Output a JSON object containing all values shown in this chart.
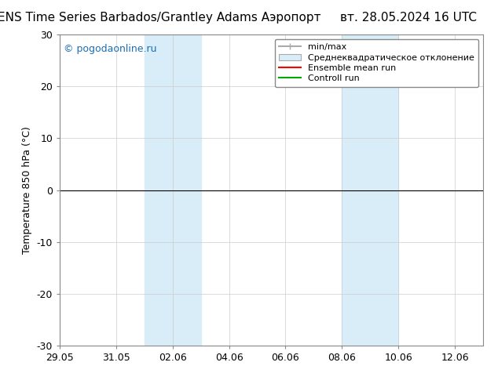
{
  "title_left": "ENS Time Series Barbados/Grantley Adams Аэропорт",
  "title_right": "вт. 28.05.2024 16 UTC",
  "ylabel": "Temperature 850 hPa (°C)",
  "watermark": "© pogodaonline.ru",
  "ylim": [
    -30,
    30
  ],
  "yticks": [
    -30,
    -20,
    -10,
    0,
    10,
    20,
    30
  ],
  "xstart": "2024-05-29",
  "xend": "2024-06-13",
  "xtick_labels": [
    "29.05",
    "31.05",
    "02.06",
    "04.06",
    "06.06",
    "08.06",
    "10.06",
    "12.06"
  ],
  "xtick_dates": [
    "2024-05-29",
    "2024-05-31",
    "2024-06-02",
    "2024-06-04",
    "2024-06-06",
    "2024-06-08",
    "2024-06-10",
    "2024-06-12"
  ],
  "shade_regions": [
    {
      "start": "2024-06-01",
      "end": "2024-06-03"
    },
    {
      "start": "2024-06-08",
      "end": "2024-06-10"
    }
  ],
  "hline_y": 0,
  "legend_labels": [
    "min/max",
    "Среднеквадратическое отклонение",
    "Ensemble mean run",
    "Controll run"
  ],
  "legend_colors": [
    "#aaaaaa",
    "#d0e8f0",
    "#ff0000",
    "#00aa00"
  ],
  "background_color": "#ffffff",
  "plot_bg_color": "#ffffff",
  "shade_color": "#d8edf8",
  "title_fontsize": 11,
  "label_fontsize": 9,
  "tick_fontsize": 9,
  "watermark_color": "#1a6eb5",
  "grid_color": "#cccccc"
}
